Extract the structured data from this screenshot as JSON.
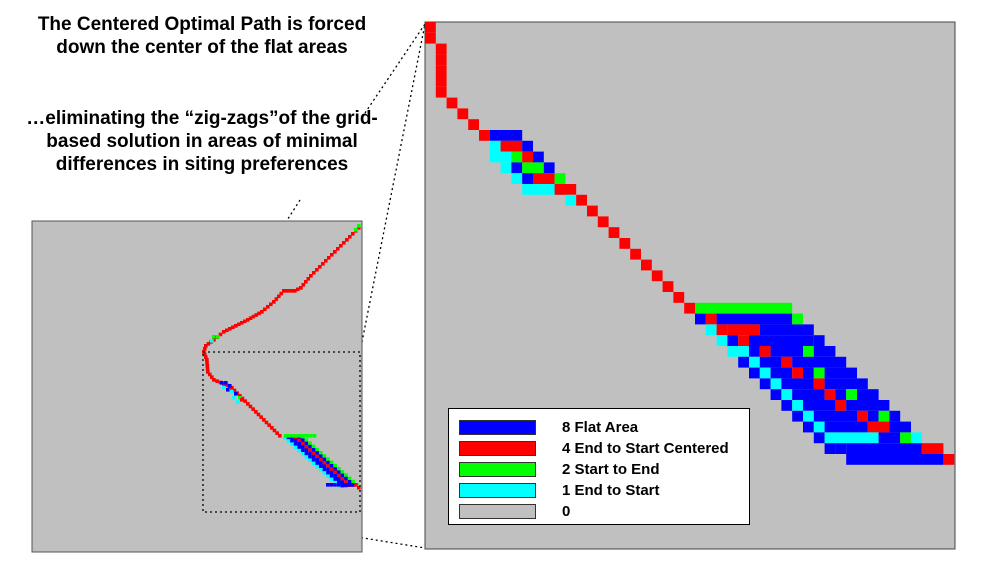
{
  "captions": {
    "main": "The Centered Optimal Path is forced down the center of the flat areas",
    "sub": "…eliminating the “zig-zags”of the grid-based solution in areas of minimal differences in siting preferences"
  },
  "colors": {
    "background": "#c0c0c0",
    "flat_area": "#0000ff",
    "end_to_start_centered": "#ff0000",
    "start_to_end": "#00ff00",
    "end_to_start": "#00ffff",
    "zero": "#c0c0c0"
  },
  "legend": [
    {
      "value": "8",
      "label": "8 Flat Area",
      "color": "#0000ff"
    },
    {
      "value": "4",
      "label": "4 End to Start Centered",
      "color": "#ff0000"
    },
    {
      "value": "2",
      "label": "2 Start to End",
      "color": "#00ff00"
    },
    {
      "value": "1",
      "label": "1 End to Start",
      "color": "#00ffff"
    },
    {
      "value": "0",
      "label": "0",
      "color": "#c0c0c0"
    }
  ]
}
